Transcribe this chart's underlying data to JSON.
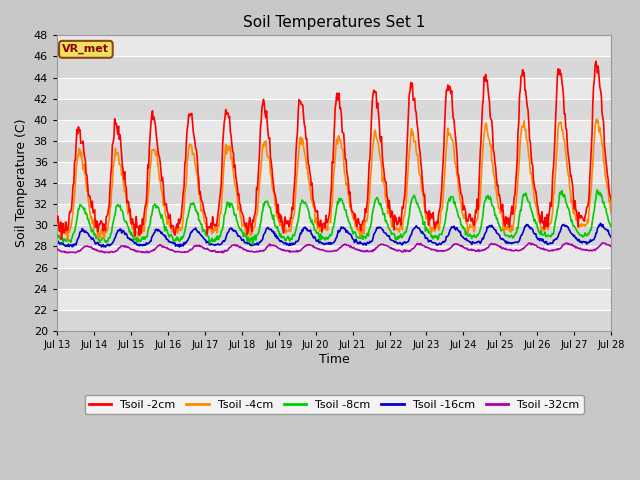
{
  "title": "Soil Temperatures Set 1",
  "xlabel": "Time",
  "ylabel": "Soil Temperature (C)",
  "ylim": [
    20,
    48
  ],
  "yticks": [
    20,
    22,
    24,
    26,
    28,
    30,
    32,
    34,
    36,
    38,
    40,
    42,
    44,
    46,
    48
  ],
  "figure_bg": "#c8c8c8",
  "plot_bg_light": "#e8e8e8",
  "plot_bg_dark": "#d8d8d8",
  "grid_color": "#ffffff",
  "annotation_text": "VR_met",
  "annotation_bg": "#f0e060",
  "annotation_border": "#8b4513",
  "series": {
    "Tsoil -2cm": {
      "color": "#ff0000",
      "linewidth": 1.2
    },
    "Tsoil -4cm": {
      "color": "#ff8800",
      "linewidth": 1.2
    },
    "Tsoil -8cm": {
      "color": "#00cc00",
      "linewidth": 1.2
    },
    "Tsoil -16cm": {
      "color": "#0000cc",
      "linewidth": 1.2
    },
    "Tsoil -32cm": {
      "color": "#aa00aa",
      "linewidth": 1.2
    }
  },
  "x_tick_labels": [
    "Jul 13",
    "Jul 14",
    "Jul 15",
    "Jul 16",
    "Jul 17",
    "Jul 18",
    "Jul 19",
    "Jul 20",
    "Jul 21",
    "Jul 22",
    "Jul 23",
    "Jul 24",
    "Jul 25",
    "Jul 26",
    "Jul 27",
    "Jul 28"
  ]
}
